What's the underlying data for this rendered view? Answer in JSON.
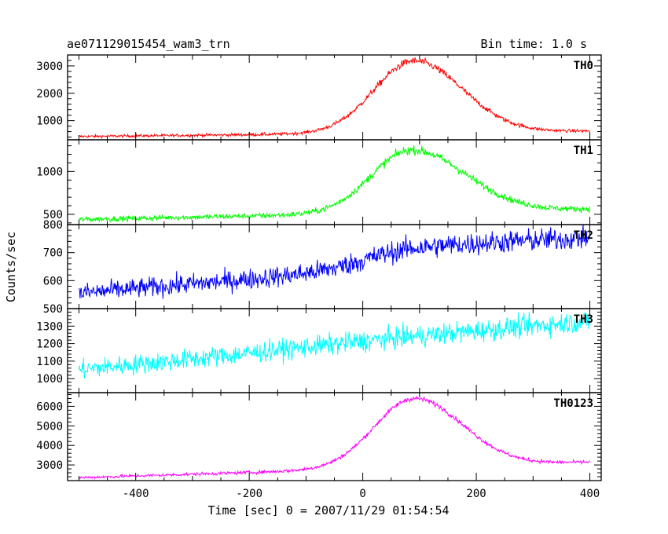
{
  "header": {
    "title": "ae071129015454_wam3_trn",
    "bin_time": "Bin time: 1.0 s"
  },
  "chart_data": {
    "type": "line",
    "xlabel": "Time [sec] 0 = 2007/11/29 01:54:54",
    "ylabel": "Counts/sec",
    "xlim": [
      -520,
      420
    ],
    "xticks": [
      -400,
      -200,
      0,
      200,
      400
    ],
    "x_data_range": [
      -500,
      400
    ],
    "grid": false,
    "legend": "none",
    "panels": [
      {
        "name": "TH0",
        "color": "#ff0000",
        "ylim": [
          300,
          3400
        ],
        "yticks": [
          1000,
          2000,
          3000
        ],
        "baseline_start": 420,
        "baseline_end": 620,
        "peak": 3180,
        "peak_center": 90,
        "rise_width": 70,
        "fall_width": 85,
        "noise": 35
      },
      {
        "name": "TH1",
        "color": "#00ff00",
        "ylim": [
          380,
          1370
        ],
        "yticks": [
          500,
          1000
        ],
        "baseline_start": 440,
        "baseline_end": 560,
        "peak": 1250,
        "peak_center": 85,
        "rise_width": 70,
        "fall_width": 95,
        "noise": 22
      },
      {
        "name": "TH2",
        "color": "#0000ff",
        "ylim": [
          500,
          800
        ],
        "yticks": [
          500,
          600,
          700,
          800
        ],
        "baseline_start": 555,
        "baseline_end": 705,
        "peak": 718,
        "peak_center": 100,
        "rise_width": 90,
        "fall_width": 400,
        "noise": 25
      },
      {
        "name": "TH3",
        "color": "#00ffff",
        "ylim": [
          920,
          1400
        ],
        "yticks": [
          1000,
          1100,
          1200,
          1300
        ],
        "baseline_start": 1050,
        "baseline_end": 1310,
        "peak": 1250,
        "peak_center": 120,
        "rise_width": 250,
        "fall_width": 900,
        "noise": 40
      },
      {
        "name": "TH0123",
        "color": "#ff00ff",
        "ylim": [
          2200,
          6700
        ],
        "yticks": [
          3000,
          4000,
          5000,
          6000
        ],
        "baseline_start": 2350,
        "baseline_end": 3150,
        "peak": 6400,
        "peak_center": 90,
        "rise_width": 70,
        "fall_width": 85,
        "noise": 55
      }
    ]
  }
}
